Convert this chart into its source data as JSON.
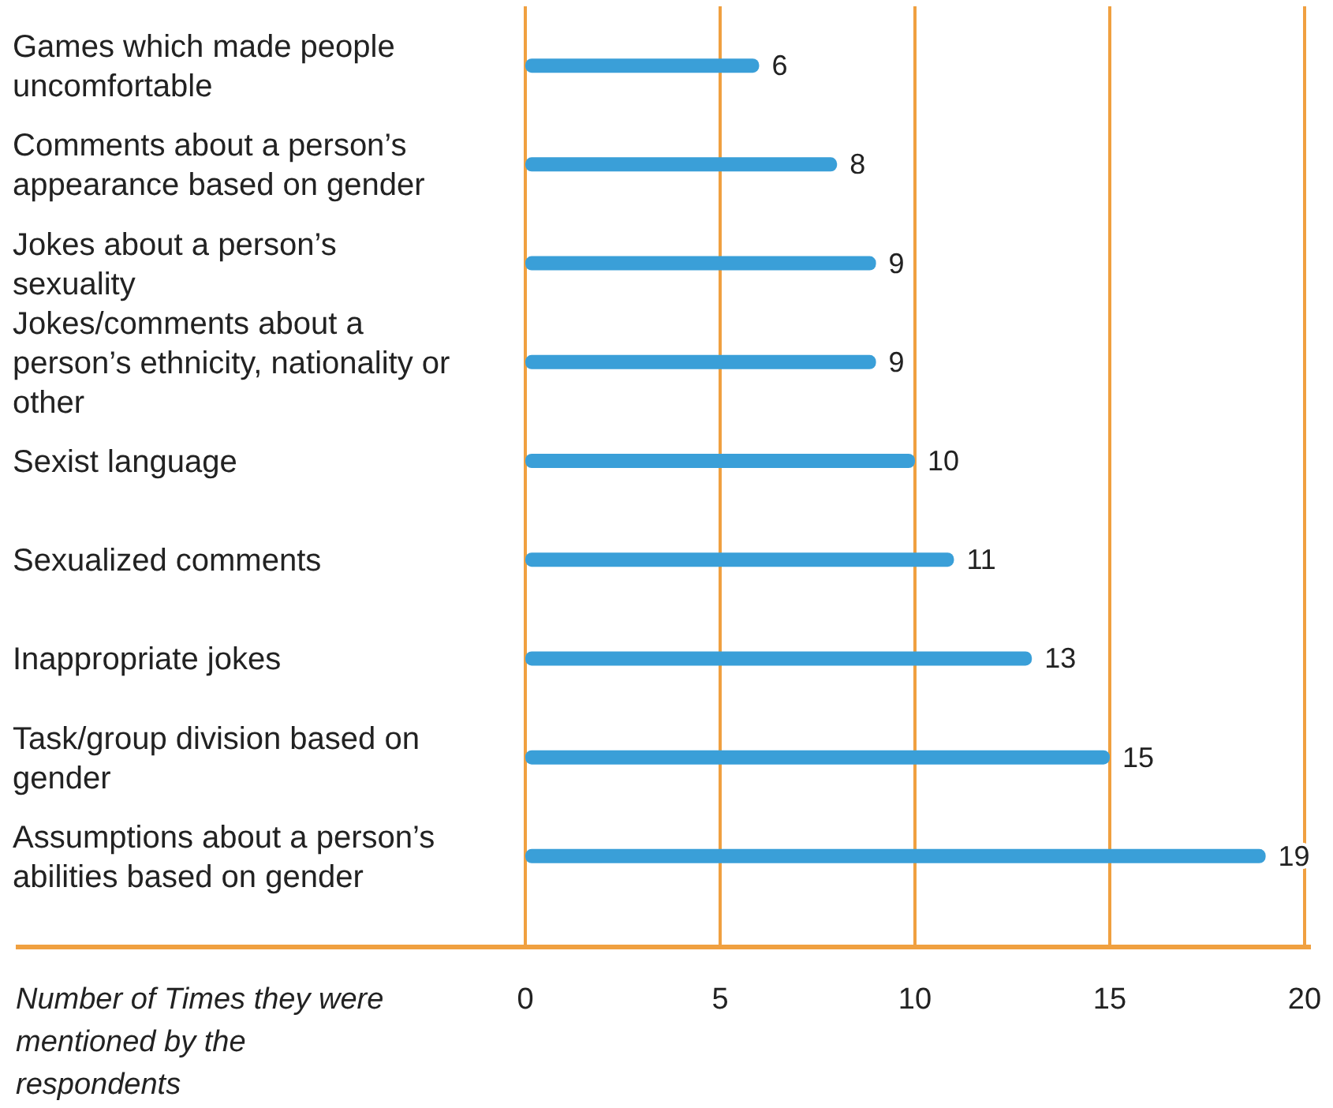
{
  "chart_data": {
    "type": "bar",
    "orientation": "horizontal",
    "xlabel": "Number of Times they were mentioned by the respondents",
    "categories": [
      "Games which made people uncomfortable",
      "Comments about a person’s appearance based on gender",
      "Jokes about a person’s sexuality",
      "Jokes/comments about a person’s ethnicity, nationality or other",
      "Sexist language",
      "Sexualized comments",
      "Inappropriate jokes",
      "Task/group division based on gender",
      "Assumptions about a person’s abilities based on gender"
    ],
    "values": [
      6,
      8,
      9,
      9,
      10,
      11,
      13,
      15,
      19
    ],
    "color": "#3a9fd8",
    "xlim": [
      0,
      20
    ],
    "xticks": [
      0,
      5,
      10,
      15,
      20
    ],
    "grid": "x",
    "data_labels": true
  }
}
